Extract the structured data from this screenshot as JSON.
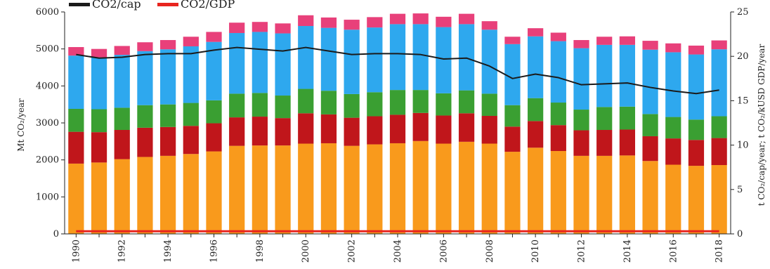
{
  "chart_data": {
    "type": "bar",
    "stacked": true,
    "title": "",
    "xlabel": "",
    "ylabel": "Mt CO₂/year",
    "y2label": "t CO₂/cap/year; t CO₂/kUSD GDP/year",
    "ylim": [
      0,
      6000
    ],
    "y2lim": [
      0,
      25
    ],
    "yticks": [
      "0",
      "1000",
      "2000",
      "3000",
      "4000",
      "5000",
      "6000"
    ],
    "y2ticks": [
      "0",
      "5",
      "10",
      "15",
      "20",
      "25"
    ],
    "grid": false,
    "legend_position": "top-left",
    "categories": [
      "1990",
      "1991",
      "1992",
      "1993",
      "1994",
      "1995",
      "1996",
      "1997",
      "1998",
      "1999",
      "2000",
      "2001",
      "2002",
      "2003",
      "2004",
      "2005",
      "2006",
      "2007",
      "2008",
      "2009",
      "2010",
      "2011",
      "2012",
      "2013",
      "2014",
      "2015",
      "2016",
      "2017",
      "2018"
    ],
    "xtick_labels": [
      "1990",
      "",
      "1992",
      "",
      "1994",
      "",
      "1996",
      "",
      "1998",
      "",
      "2000",
      "",
      "2002",
      "",
      "2004",
      "",
      "2006",
      "",
      "2008",
      "",
      "2010",
      "",
      "2012",
      "",
      "2014",
      "",
      "2016",
      "",
      "2018"
    ],
    "series": [
      {
        "color": "#f99a1c",
        "values": [
          1900,
          1930,
          2020,
          2080,
          2110,
          2160,
          2230,
          2380,
          2390,
          2390,
          2440,
          2450,
          2380,
          2420,
          2450,
          2510,
          2440,
          2490,
          2440,
          2220,
          2330,
          2240,
          2110,
          2110,
          2120,
          1970,
          1870,
          1840,
          1860
        ]
      },
      {
        "color": "#c0161b",
        "values": [
          860,
          820,
          790,
          790,
          780,
          760,
          760,
          770,
          780,
          740,
          820,
          780,
          760,
          760,
          770,
          760,
          760,
          770,
          750,
          680,
          720,
          700,
          690,
          700,
          700,
          670,
          710,
          700,
          730
        ]
      },
      {
        "color": "#3a9f32",
        "values": [
          620,
          620,
          600,
          610,
          610,
          620,
          620,
          640,
          640,
          610,
          660,
          640,
          640,
          650,
          670,
          620,
          600,
          620,
          600,
          580,
          620,
          610,
          560,
          620,
          620,
          600,
          580,
          550,
          590
        ]
      },
      {
        "color": "#2ea8ee",
        "values": [
          1440,
          1400,
          1430,
          1460,
          1490,
          1530,
          1580,
          1640,
          1650,
          1680,
          1700,
          1700,
          1740,
          1750,
          1780,
          1780,
          1790,
          1790,
          1730,
          1650,
          1670,
          1660,
          1660,
          1680,
          1670,
          1740,
          1750,
          1760,
          1810
        ]
      },
      {
        "color": "#e8407a",
        "values": [
          230,
          230,
          240,
          240,
          250,
          260,
          270,
          280,
          270,
          270,
          290,
          280,
          270,
          280,
          280,
          290,
          280,
          280,
          230,
          200,
          220,
          230,
          220,
          220,
          230,
          240,
          240,
          240,
          240
        ]
      }
    ],
    "line_series": [
      {
        "name": "CO2/cap",
        "color": "#1b1b1b",
        "axis": "right",
        "values": [
          20.2,
          19.8,
          19.9,
          20.2,
          20.3,
          20.3,
          20.7,
          21.0,
          20.8,
          20.6,
          21.0,
          20.6,
          20.2,
          20.3,
          20.3,
          20.2,
          19.7,
          19.8,
          18.9,
          17.5,
          18.0,
          17.6,
          16.8,
          16.9,
          17.0,
          16.5,
          16.1,
          15.8,
          16.2
        ]
      },
      {
        "name": "CO2/GDP",
        "color": "#e8251f",
        "axis": "right",
        "values": [
          0.3,
          0.3,
          0.3,
          0.3,
          0.3,
          0.3,
          0.3,
          0.3,
          0.3,
          0.3,
          0.3,
          0.3,
          0.3,
          0.3,
          0.3,
          0.3,
          0.3,
          0.3,
          0.3,
          0.3,
          0.3,
          0.3,
          0.3,
          0.3,
          0.3,
          0.3,
          0.3,
          0.3,
          0.3
        ]
      }
    ]
  }
}
